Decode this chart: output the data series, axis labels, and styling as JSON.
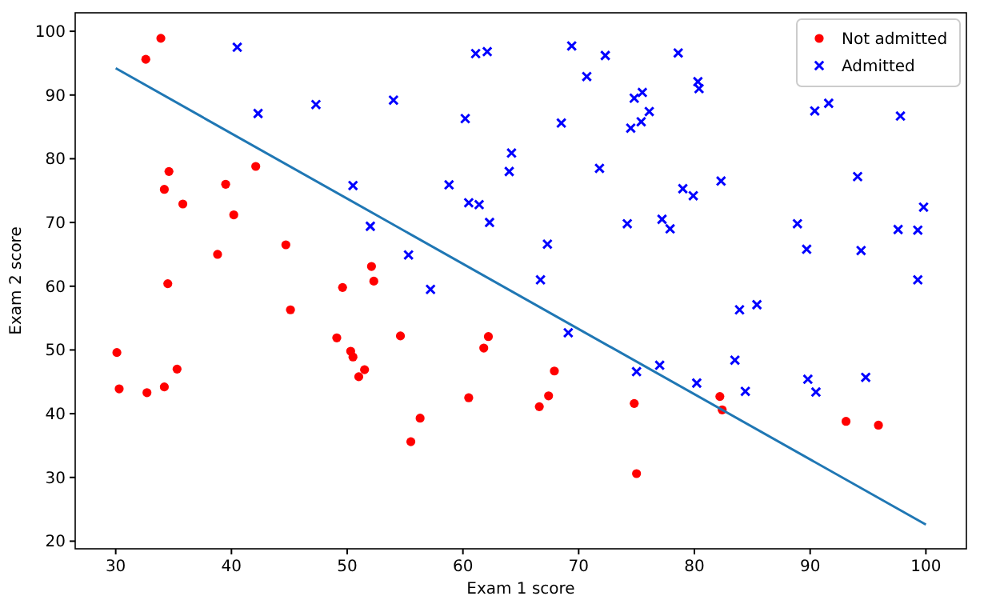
{
  "chart_data": {
    "type": "scatter",
    "xlabel": "Exam 1 score",
    "ylabel": "Exam 2 score",
    "xlim": [
      26.5,
      103.5
    ],
    "ylim": [
      18.8,
      102.9
    ],
    "xticks": [
      30,
      40,
      50,
      60,
      70,
      80,
      90,
      100
    ],
    "yticks": [
      20,
      30,
      40,
      50,
      60,
      70,
      80,
      90,
      100
    ],
    "grid": false,
    "legend": "top right",
    "series": [
      {
        "name": "Not admitted",
        "color": "#ff0000",
        "marker": "circle",
        "x": [
          34.6,
          30.3,
          35.8,
          45.1,
          95.9,
          75.0,
          39.5,
          67.9,
          67.4,
          50.5,
          34.2,
          93.1,
          61.8,
          38.8,
          52.1,
          40.2,
          54.6,
          33.9,
          74.8,
          34.2,
          51.5,
          82.4,
          51.0,
          62.2,
          34.5,
          50.3,
          49.6,
          32.6,
          35.3,
          56.3,
          30.1,
          44.7,
          66.6,
          49.1,
          32.7,
          60.5,
          82.2,
          42.1,
          52.3,
          55.5
        ],
        "values": [
          78.0,
          43.9,
          72.9,
          56.3,
          38.2,
          30.6,
          76.0,
          46.7,
          42.8,
          48.9,
          44.2,
          38.8,
          50.3,
          65.0,
          63.1,
          71.2,
          52.2,
          98.9,
          41.6,
          75.2,
          46.9,
          40.6,
          45.8,
          52.1,
          60.4,
          49.8,
          59.8,
          95.6,
          47.0,
          39.3,
          49.6,
          66.5,
          41.1,
          51.9,
          43.3,
          42.5,
          42.7,
          78.8,
          60.8,
          35.6
        ]
      },
      {
        "name": "Admitted",
        "color": "#0000ff",
        "marker": "cross",
        "x": [
          60.2,
          79.0,
          61.1,
          75.0,
          76.1,
          84.4,
          82.3,
          69.4,
          54.0,
          69.1,
          70.7,
          77.0,
          89.7,
          77.9,
          62.3,
          80.2,
          61.4,
          85.4,
          52.0,
          64.2,
          83.9,
          94.4,
          77.2,
          97.8,
          62.1,
          91.6,
          79.9,
          99.3,
          90.5,
          97.6,
          74.2,
          71.8,
          75.4,
          40.5,
          80.3,
          66.7,
          64.0,
          72.3,
          60.5,
          58.8,
          99.8,
          47.3,
          50.5,
          88.9,
          94.8,
          67.3,
          57.2,
          80.4,
          68.5,
          75.5,
          78.6,
          94.1,
          90.4,
          74.5,
          89.8,
          83.5,
          42.3,
          99.3,
          55.3,
          74.8
        ],
        "values": [
          86.3,
          75.3,
          96.5,
          46.6,
          87.4,
          43.5,
          76.5,
          97.7,
          89.2,
          52.7,
          92.9,
          47.6,
          65.8,
          69.0,
          70.0,
          44.8,
          72.8,
          57.1,
          69.4,
          80.9,
          56.3,
          65.6,
          70.5,
          86.7,
          96.8,
          88.7,
          74.2,
          61.0,
          43.4,
          68.9,
          69.8,
          78.5,
          85.8,
          97.5,
          92.1,
          61.0,
          78.0,
          96.2,
          73.1,
          75.9,
          72.4,
          88.5,
          75.8,
          69.8,
          45.7,
          66.6,
          59.5,
          91.0,
          85.6,
          90.4,
          96.6,
          77.2,
          87.5,
          84.8,
          45.4,
          48.4,
          87.1,
          68.8,
          64.9,
          89.5
        ]
      },
      {
        "type": "line",
        "color": "#1f77b4",
        "marker": "none",
        "line_style": "solid",
        "x": [
          30,
          100
        ],
        "values": [
          94.2,
          22.6
        ]
      }
    ]
  }
}
